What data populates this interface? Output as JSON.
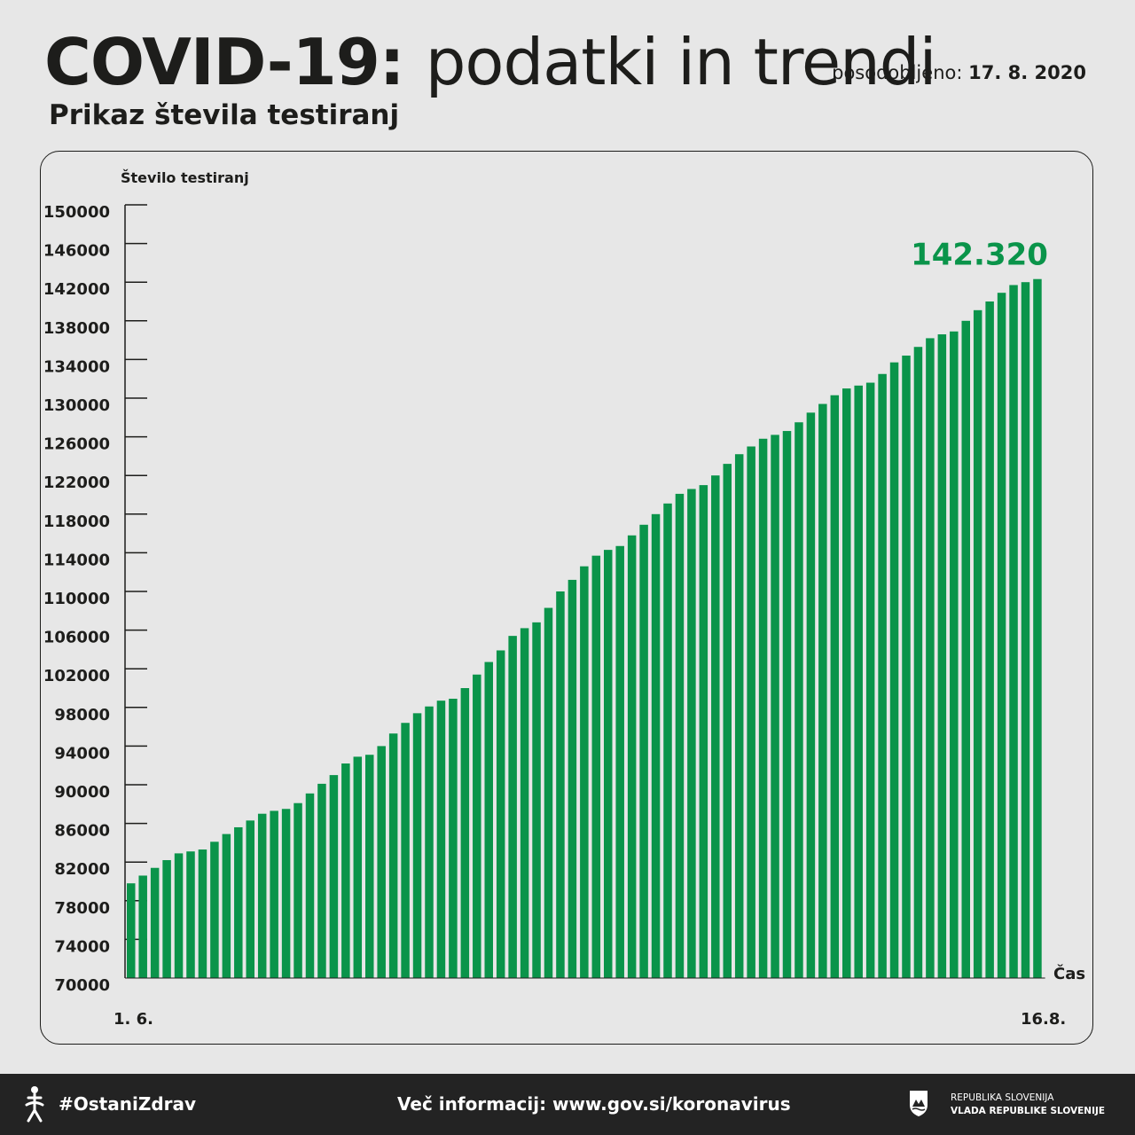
{
  "header": {
    "title_bold": "COVID-19:",
    "title_light": "podatki in trendi",
    "updated_label": "posodobljeno:",
    "updated_date": "17. 8. 2020",
    "subtitle": "Prikaz števila testiranj"
  },
  "chart_data": {
    "type": "bar",
    "ylabel": "Število testiranj",
    "xlabel": "Čas",
    "ylim": [
      70000,
      150000
    ],
    "yticks": [
      "70000",
      "74000",
      "78000",
      "82000",
      "86000",
      "90000",
      "94000",
      "98000",
      "102000",
      "106000",
      "110000",
      "114000",
      "118000",
      "122000",
      "126000",
      "130000",
      "134000",
      "138000",
      "142000",
      "146000",
      "150000"
    ],
    "x_start_label": "1. 6.",
    "x_end_label": "16.8.",
    "highlight_label": "142.320",
    "bar_color": "#0a944a",
    "text_color": "#1d1d1b",
    "series": [
      {
        "values": [
          79800,
          80600,
          81400,
          82200,
          82900,
          83100,
          83300,
          84100,
          84900,
          85600,
          86300,
          87000,
          87300,
          87500,
          88100,
          89100,
          90100,
          91000,
          92200,
          92900,
          93100,
          94000,
          95300,
          96400,
          97400,
          98100,
          98700,
          98900,
          100000,
          101400,
          102700,
          103900,
          105400,
          106200,
          106800,
          108300,
          110000,
          111200,
          112600,
          113700,
          114300,
          114700,
          115800,
          116900,
          118000,
          119100,
          120100,
          120600,
          121000,
          122000,
          123200,
          124200,
          125000,
          125800,
          126200,
          126600,
          127500,
          128500,
          129400,
          130300,
          131000,
          131300,
          131600,
          132500,
          133700,
          134400,
          135300,
          136200,
          136600,
          136900,
          138000,
          139100,
          140000,
          140900,
          141700,
          142000,
          142320
        ]
      }
    ]
  },
  "footer": {
    "hashtag": "#OstaniZdrav",
    "more_info": "Več informacij: www.gov.si/koronavirus",
    "gov_line1": "REPUBLIKA SLOVENIJA",
    "gov_line2": "VLADA REPUBLIKE SLOVENIJE"
  }
}
